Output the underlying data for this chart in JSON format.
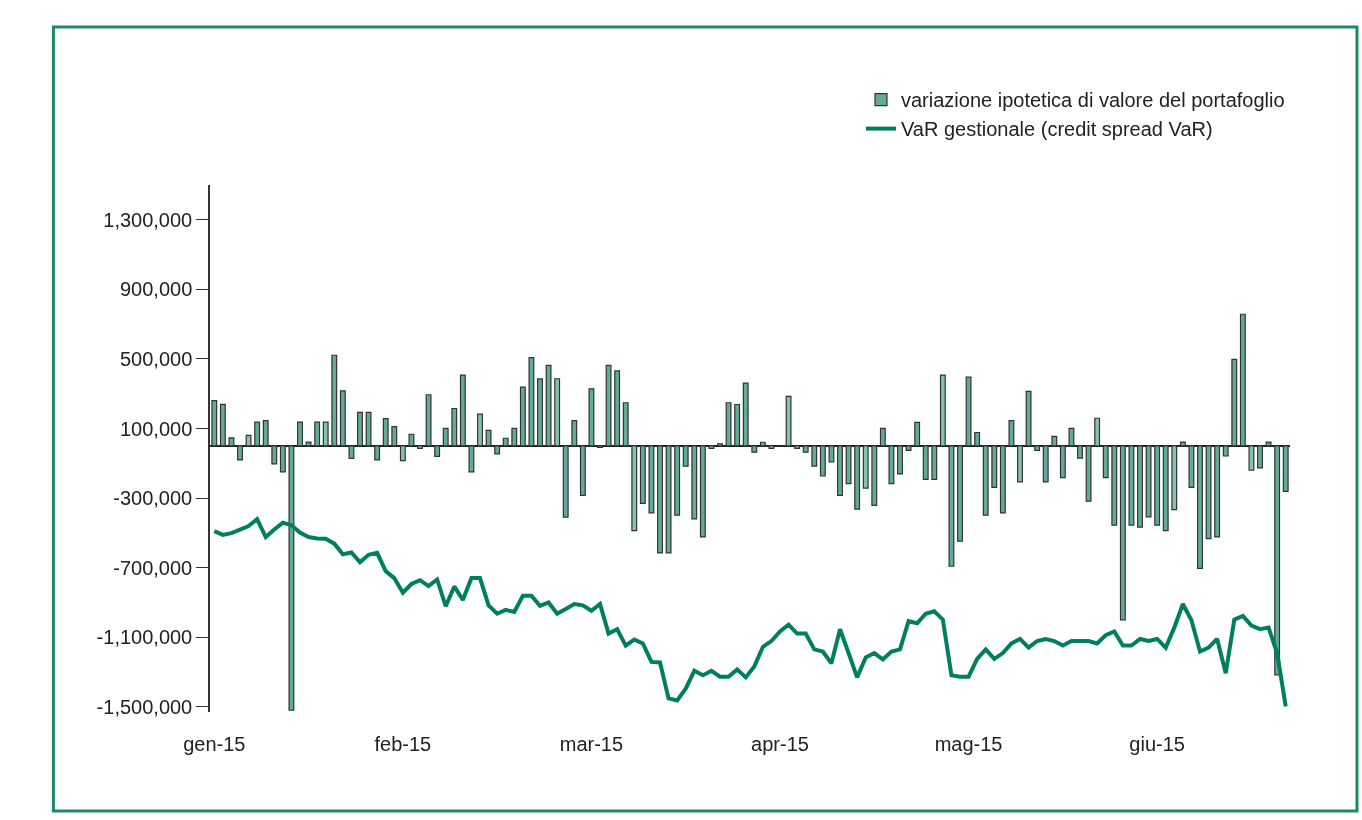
{
  "chart_data": {
    "type": "bar",
    "categories": [
      "gen-15",
      null,
      null,
      null,
      null,
      null,
      null,
      null,
      null,
      null,
      null,
      null,
      null,
      null,
      null,
      null,
      null,
      null,
      null,
      null,
      null,
      null,
      "feb-15",
      null,
      null,
      null,
      null,
      null,
      null,
      null,
      null,
      null,
      null,
      null,
      null,
      null,
      null,
      null,
      null,
      null,
      null,
      null,
      null,
      null,
      "mar-15",
      null,
      null,
      null,
      null,
      null,
      null,
      null,
      null,
      null,
      null,
      null,
      null,
      null,
      null,
      null,
      null,
      null,
      null,
      null,
      null,
      null,
      "apr-15",
      null,
      null,
      null,
      null,
      null,
      null,
      null,
      null,
      null,
      null,
      null,
      null,
      null,
      null,
      null,
      null,
      null,
      null,
      null,
      null,
      null,
      "mag-15",
      null,
      null,
      null,
      null,
      null,
      null,
      null,
      null,
      null,
      null,
      null,
      null,
      null,
      null,
      null,
      null,
      null,
      null,
      null,
      null,
      null,
      "giu-15",
      null,
      null,
      null,
      null,
      null,
      null,
      null,
      null,
      null,
      null,
      null,
      null,
      null,
      null,
      null
    ],
    "series": [
      {
        "name": "variazione ipotetica di valore del portafoglio",
        "color": "#62ab98",
        "colors": [
          "#62ab98",
          "#62ab98",
          "#62ab98",
          "#62ab98",
          "#85c2b2",
          "#62ab98",
          "#62ab98",
          "#62ab98",
          "#62ab98",
          "#62ab98",
          "#62ab98",
          "#62ab98",
          "#62ab98",
          "#85c2b2",
          "#62ab98",
          "#62ab98",
          "#62ab98",
          "#62ab98",
          "#62ab98",
          "#62ab98",
          "#62ab98",
          "#62ab98",
          "#85c2b2",
          "#62ab98",
          "#85c2b2",
          "#62ab98",
          "#62ab98",
          "#62ab98",
          "#62ab98",
          "#62ab98",
          "#62ab98",
          "#85c2b2",
          "#62ab98",
          "#62ab98",
          "#62ab98",
          "#62ab98",
          "#62ab98",
          "#62ab98",
          "#62ab98",
          "#62ab98",
          "#85c2b2",
          "#62ab98",
          "#62ab98",
          "#62ab98",
          "#62ab98",
          "#85c2b2",
          "#62ab98",
          "#62ab98",
          "#62ab98",
          "#85c2b2",
          "#62ab98",
          "#62ab98",
          "#62ab98",
          "#62ab98",
          "#62ab98",
          "#62ab98",
          "#62ab98",
          "#62ab98",
          "#85c2b2",
          "#85c2b2",
          "#62ab98",
          "#62ab98",
          "#62ab98",
          "#62ab98",
          "#62ab98",
          "#85c2b2",
          "#85c2b2",
          "#85c2b2",
          "#85c2b2",
          "#62ab98",
          "#62ab98",
          "#62ab98",
          "#62ab98",
          "#62ab98",
          "#62ab98",
          "#62ab98",
          "#85c2b2",
          "#62ab98",
          "#62ab98",
          "#62ab98",
          "#62ab98",
          "#62ab98",
          "#62ab98",
          "#62ab98",
          "#62ab98",
          "#85c2b2",
          "#62ab98",
          "#62ab98",
          "#62ab98",
          "#62ab98",
          "#62ab98",
          "#62ab98",
          "#62ab98",
          "#62ab98",
          "#85c2b2",
          "#62ab98",
          "#62ab98",
          "#62ab98",
          "#62ab98",
          "#62ab98",
          "#62ab98",
          "#62ab98",
          "#62ab98",
          "#85c2b2",
          "#62ab98",
          "#62ab98",
          "#62ab98",
          "#62ab98",
          "#62ab98",
          "#62ab98",
          "#62ab98",
          "#62ab98",
          "#85c2b2",
          "#62ab98",
          "#62ab98",
          "#62ab98",
          "#62ab98",
          "#62ab98",
          "#62ab98",
          "#62ab98",
          "#62ab98",
          "#85c2b2",
          "#62ab98",
          "#62ab98",
          "#62ab98",
          "#62ab98"
        ],
        "values": [
          260000,
          239000,
          46000,
          -80000,
          60000,
          137000,
          145000,
          -103000,
          -149000,
          -1520000,
          137000,
          22000,
          137000,
          137000,
          521000,
          316000,
          -72000,
          193000,
          193000,
          -80000,
          157000,
          111000,
          -85000,
          67000,
          -14000,
          294000,
          -60000,
          101000,
          215000,
          407000,
          -149000,
          183000,
          89000,
          -46000,
          44000,
          101000,
          338000,
          508000,
          385000,
          463000,
          386000,
          -410000,
          145000,
          -285000,
          328000,
          -9000,
          463000,
          431000,
          248000,
          -487000,
          -330000,
          -385000,
          -615000,
          -615000,
          -398000,
          -116000,
          -420000,
          -523000,
          -14000,
          12000,
          248000,
          238000,
          361000,
          -36000,
          21000,
          -14000,
          null,
          285000,
          -14000,
          -36000,
          -116000,
          -173000,
          -92000,
          -285000,
          -217000,
          -364000,
          -243000,
          -342000,
          101000,
          -217000,
          -161000,
          -26000,
          135000,
          -193000,
          -193000,
          407000,
          -692000,
          -547000,
          395000,
          77000,
          -398000,
          -239000,
          -385000,
          145000,
          -207000,
          314000,
          -26000,
          -207000,
          55000,
          -183000,
          101000,
          -70000,
          -318000,
          159000,
          -183000,
          -455000,
          -1000000,
          -455000,
          -467000,
          -408000,
          -455000,
          -487000,
          -366000,
          22000,
          -239000,
          -704000,
          -533000,
          -523000,
          -58000,
          497000,
          757000,
          -140000,
          -126000,
          22000,
          -1316000,
          -262000
        ]
      },
      {
        "name": "VaR gestionale (credit spread VaR)",
        "type": "line",
        "color": "#007f5f",
        "values": [
          -490000,
          -512000,
          -502000,
          -481000,
          -461000,
          -421000,
          -524000,
          -481000,
          -442000,
          -456000,
          -498000,
          -524000,
          -532000,
          -534000,
          -562000,
          -623000,
          -613000,
          -669000,
          -626000,
          -615000,
          -720000,
          -760000,
          -844000,
          -794000,
          -772000,
          -806000,
          -768000,
          -922000,
          -808000,
          -886000,
          -760000,
          -760000,
          -917000,
          -965000,
          -943000,
          -955000,
          -862000,
          -862000,
          -920000,
          -900000,
          -965000,
          -938000,
          -909000,
          -917000,
          -948000,
          -909000,
          -1079000,
          -1054000,
          -1148000,
          -1114000,
          -1136000,
          -1242000,
          -1245000,
          -1452000,
          -1464000,
          -1396000,
          -1293000,
          -1319000,
          -1293000,
          -1327000,
          -1327000,
          -1285000,
          -1331000,
          -1268000,
          -1156000,
          -1122000,
          -1067000,
          -1028000,
          -1079000,
          -1079000,
          -1170000,
          -1182000,
          -1250000,
          -1054000,
          -1191000,
          -1331000,
          -1216000,
          -1191000,
          -1228000,
          -1182000,
          -1170000,
          -1008000,
          -1020000,
          -965000,
          -951000,
          -999000,
          -1319000,
          -1327000,
          -1327000,
          -1225000,
          -1170000,
          -1225000,
          -1191000,
          -1136000,
          -1110000,
          -1160000,
          -1122000,
          -1110000,
          -1122000,
          -1148000,
          -1122000,
          -1122000,
          -1122000,
          -1136000,
          -1088000,
          -1067000,
          -1148000,
          -1148000,
          -1110000,
          -1122000,
          -1110000,
          -1160000,
          -1045000,
          -909000,
          -1003000,
          -1182000,
          -1160000,
          -1110000,
          -1307000,
          -999000,
          -977000,
          -1033000,
          -1054000,
          -1045000,
          -1191000,
          -1498000
        ]
      }
    ],
    "ylim": [
      -1530000,
      1500000
    ],
    "yticks": [
      {
        "value": 1300000,
        "label": "1,300,000"
      },
      {
        "value": 900000,
        "label": "900,000"
      },
      {
        "value": 500000,
        "label": "500,000"
      },
      {
        "value": 100000,
        "label": "100,000"
      },
      {
        "value": -300000,
        "label": "-300,000"
      },
      {
        "value": -700000,
        "label": "-700,000"
      },
      {
        "value": -1100000,
        "label": "-1,100,000"
      },
      {
        "value": -1500000,
        "label": "-1,500,000"
      }
    ],
    "legend": "top right",
    "line_style": "solid"
  }
}
